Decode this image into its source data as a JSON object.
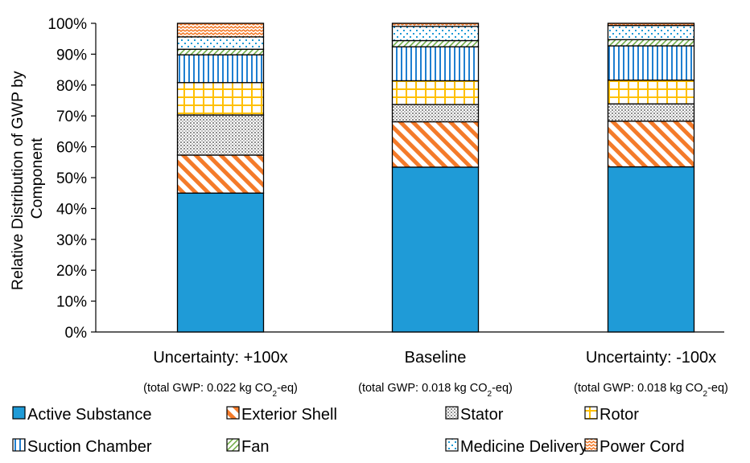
{
  "chart_data": {
    "type": "bar",
    "stacked": true,
    "normalized": true,
    "ylabel": "Relative Distribution of GWP by Component",
    "ylabel_lines": [
      "Relative Distribution of GWP by",
      "Component"
    ],
    "ylim": [
      0,
      100
    ],
    "yticks": [
      "0%",
      "10%",
      "20%",
      "30%",
      "40%",
      "50%",
      "60%",
      "70%",
      "80%",
      "90%",
      "100%"
    ],
    "grid": false,
    "legend_position": "bottom",
    "categories": [
      {
        "label": "Uncertainty: +100x",
        "sub_prefix": "(total GWP: 0.022 kg CO",
        "sub_subscript": "2",
        "sub_suffix": "-eq)"
      },
      {
        "label": "Baseline",
        "sub_prefix": "(total GWP: 0.018 kg CO",
        "sub_subscript": "2",
        "sub_suffix": "-eq)"
      },
      {
        "label": "Uncertainty: -100x",
        "sub_prefix": "(total GWP: 0.018 kg CO",
        "sub_subscript": "2",
        "sub_suffix": "-eq)"
      }
    ],
    "series": [
      {
        "name": "Active Substance",
        "color": "#1F9BD7",
        "pattern": "solid",
        "values": [
          45.0,
          53.4,
          53.5
        ]
      },
      {
        "name": "Exterior Shell",
        "color": "#F47B2A",
        "pattern": "diagonal-stripes",
        "values": [
          12.3,
          14.7,
          14.8
        ]
      },
      {
        "name": "Stator",
        "color": "#A6A6A6",
        "pattern": "dots",
        "values": [
          13.0,
          5.6,
          5.6
        ]
      },
      {
        "name": "Rotor",
        "color": "#FFC000",
        "pattern": "grid",
        "values": [
          10.5,
          7.7,
          7.7
        ]
      },
      {
        "name": "Suction Chamber",
        "color": "#1F7FD0",
        "pattern": "vertical-stripes",
        "values": [
          9.0,
          11.0,
          11.1
        ]
      },
      {
        "name": "Fan",
        "color": "#70AD47",
        "pattern": "diagonal-stripes-thin",
        "values": [
          1.8,
          2.0,
          2.0
        ]
      },
      {
        "name": "Medicine Delivery",
        "color": "#1F9BD7",
        "pattern": "dots-sparse",
        "values": [
          4.0,
          4.6,
          4.6
        ]
      },
      {
        "name": "Power Cord",
        "color": "#F47B2A",
        "pattern": "zigzag",
        "values": [
          4.4,
          1.0,
          0.7
        ]
      }
    ]
  }
}
